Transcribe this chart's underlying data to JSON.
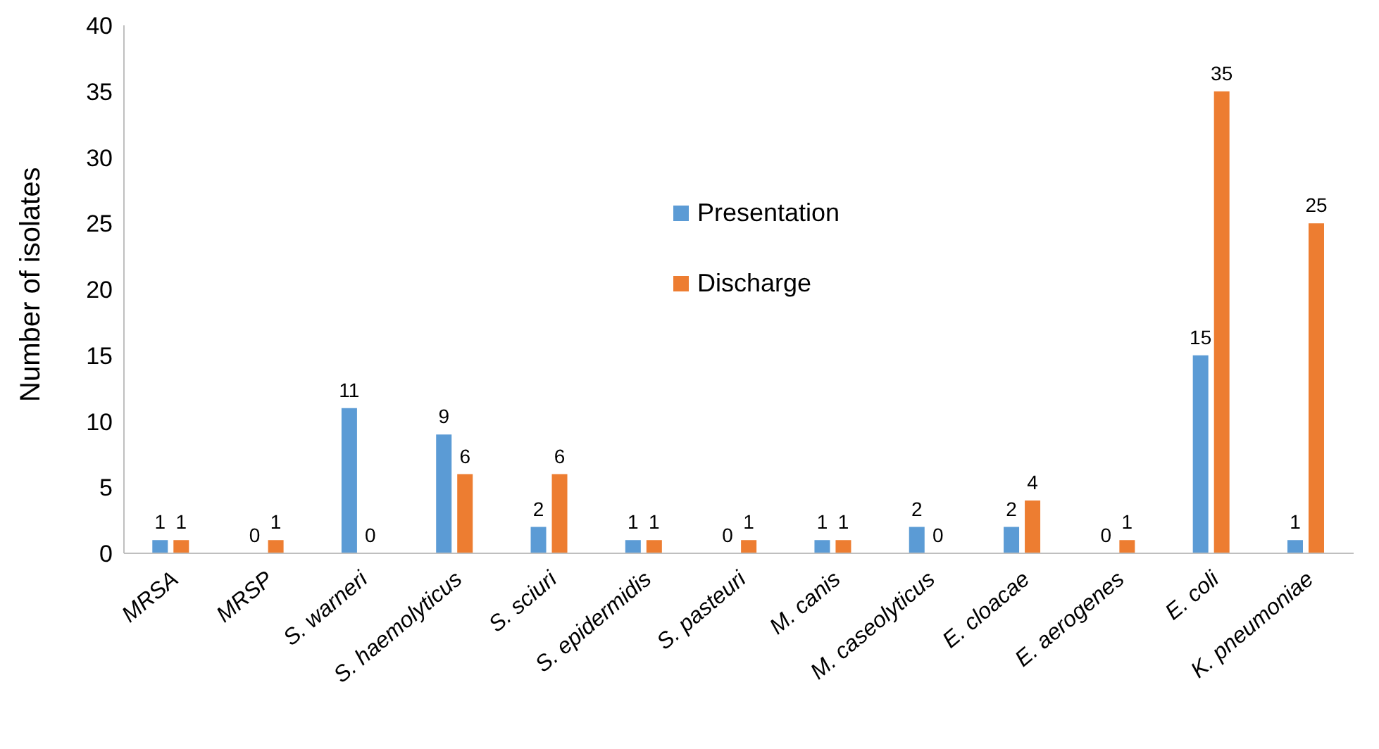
{
  "chart_data": {
    "type": "bar",
    "ylabel": "Number of isolates",
    "categories": [
      "MRSA",
      "MRSP",
      "S. warneri",
      "S. haemolyticus",
      "S. sciuri",
      "S. epidermidis",
      "S. pasteuri",
      "M. canis",
      "M. caseolyticus",
      "E. cloacae",
      "E. aerogenes",
      "E. coli",
      "K. pneumoniae"
    ],
    "series": [
      {
        "name": "Presentation",
        "color": "#5b9bd5",
        "values": [
          1,
          0,
          11,
          9,
          2,
          1,
          0,
          1,
          2,
          2,
          0,
          15,
          1
        ]
      },
      {
        "name": "Discharge",
        "color": "#ed7d31",
        "values": [
          1,
          1,
          0,
          6,
          6,
          1,
          1,
          1,
          0,
          4,
          1,
          35,
          25
        ]
      }
    ],
    "ylim": [
      0,
      40
    ],
    "yticks": [
      0,
      5,
      10,
      15,
      20,
      25,
      30,
      35,
      40
    ],
    "grid": false,
    "legend": "top",
    "data_labels": true
  }
}
